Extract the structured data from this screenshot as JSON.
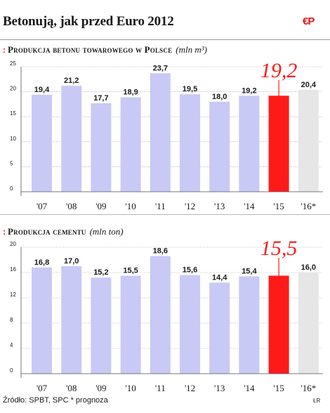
{
  "header": {
    "title": "Betonują, jak przed Euro 2012",
    "logo_text": "€P"
  },
  "colors": {
    "bar": "#c9c9f5",
    "highlight": "#ff1a1a",
    "forecast": "#e6e6e6",
    "accent": "#e6141b"
  },
  "chart_data": [
    {
      "type": "bar",
      "title_marker": ":",
      "title": "Produkcja betonu towarowego w Polsce",
      "unit": "(mln m³)",
      "categories": [
        "'07",
        "'08",
        "'09",
        "'10",
        "'11",
        "'12",
        "'13",
        "'14",
        "'15",
        "'16*"
      ],
      "values": [
        19.4,
        21.2,
        17.7,
        18.9,
        23.7,
        19.5,
        18.0,
        19.2,
        19.2,
        20.4
      ],
      "value_labels": [
        "19,4",
        "21,2",
        "17,7",
        "18,9",
        "23,7",
        "19,5",
        "18,0",
        "19,2",
        "19,2",
        "20,4"
      ],
      "highlight_index": 8,
      "forecast_index": 9,
      "ylim": [
        0,
        25
      ],
      "yticks": [
        0,
        5,
        10,
        15,
        20,
        25
      ],
      "grid": true
    },
    {
      "type": "bar",
      "title_marker": ":",
      "title": "Produkcja cementu",
      "unit": "(mln ton)",
      "categories": [
        "'07",
        "'08",
        "'09",
        "'10",
        "'11",
        "'12",
        "'13",
        "'14",
        "'15",
        "'16*"
      ],
      "values": [
        16.8,
        17.0,
        15.2,
        15.5,
        18.6,
        15.6,
        14.4,
        15.4,
        15.5,
        16.0
      ],
      "value_labels": [
        "16,8",
        "17,0",
        "15,2",
        "15,5",
        "18,6",
        "15,6",
        "14,4",
        "15,4",
        "15,5",
        "16,0"
      ],
      "highlight_index": 8,
      "forecast_index": 9,
      "ylim": [
        0,
        20
      ],
      "yticks": [
        0,
        4,
        8,
        12,
        16,
        20
      ],
      "grid": true
    }
  ],
  "footer": {
    "source": "Źródło: SPBT, SPC    * prognoza",
    "credit": "ŁR"
  }
}
